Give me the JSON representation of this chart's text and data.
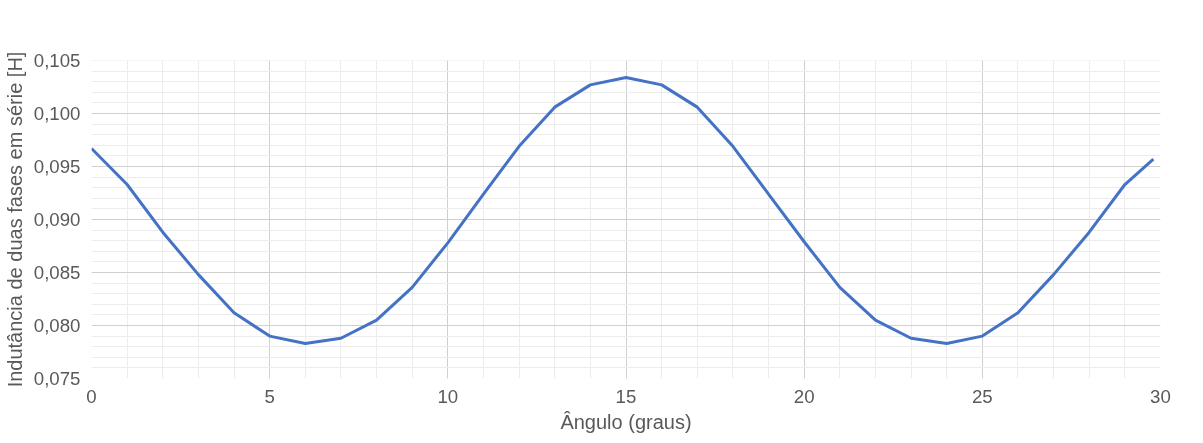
{
  "chart_data": {
    "type": "line",
    "xlabel": "Ângulo (graus)",
    "ylabel": "Indutância de duas fases em série [H]",
    "x": [
      0,
      1,
      2,
      3,
      4,
      5,
      6,
      7,
      8,
      9,
      10,
      11,
      12,
      13,
      14,
      15,
      16,
      17,
      18,
      19,
      20,
      21,
      22,
      23,
      24,
      25,
      26,
      27,
      28,
      29,
      29.8
    ],
    "series": [
      {
        "color": "#4472c4",
        "values": [
          0.0967,
          0.0933,
          0.0888,
          0.0848,
          0.0812,
          0.079,
          0.0783,
          0.0788,
          0.0805,
          0.0836,
          0.0878,
          0.0924,
          0.0969,
          0.1006,
          0.1027,
          0.1034,
          0.1027,
          0.1006,
          0.0969,
          0.0924,
          0.0879,
          0.0836,
          0.0805,
          0.0788,
          0.0783,
          0.079,
          0.0812,
          0.0848,
          0.0888,
          0.0933,
          0.0957
        ]
      }
    ],
    "xlim": [
      0,
      30
    ],
    "xticks": [
      0,
      5,
      10,
      15,
      20,
      25,
      30
    ],
    "ylim": [
      0.075,
      0.105
    ],
    "yticks": [
      {
        "value": 0.075,
        "label": "0,075"
      },
      {
        "value": 0.08,
        "label": "0,080"
      },
      {
        "value": 0.085,
        "label": "0,085"
      },
      {
        "value": 0.09,
        "label": "0,090"
      },
      {
        "value": 0.095,
        "label": "0,095"
      },
      {
        "value": 0.1,
        "label": "0,100"
      },
      {
        "value": 0.105,
        "label": "0,105"
      }
    ],
    "grid": true,
    "marker": "none",
    "line_style": "solid"
  }
}
